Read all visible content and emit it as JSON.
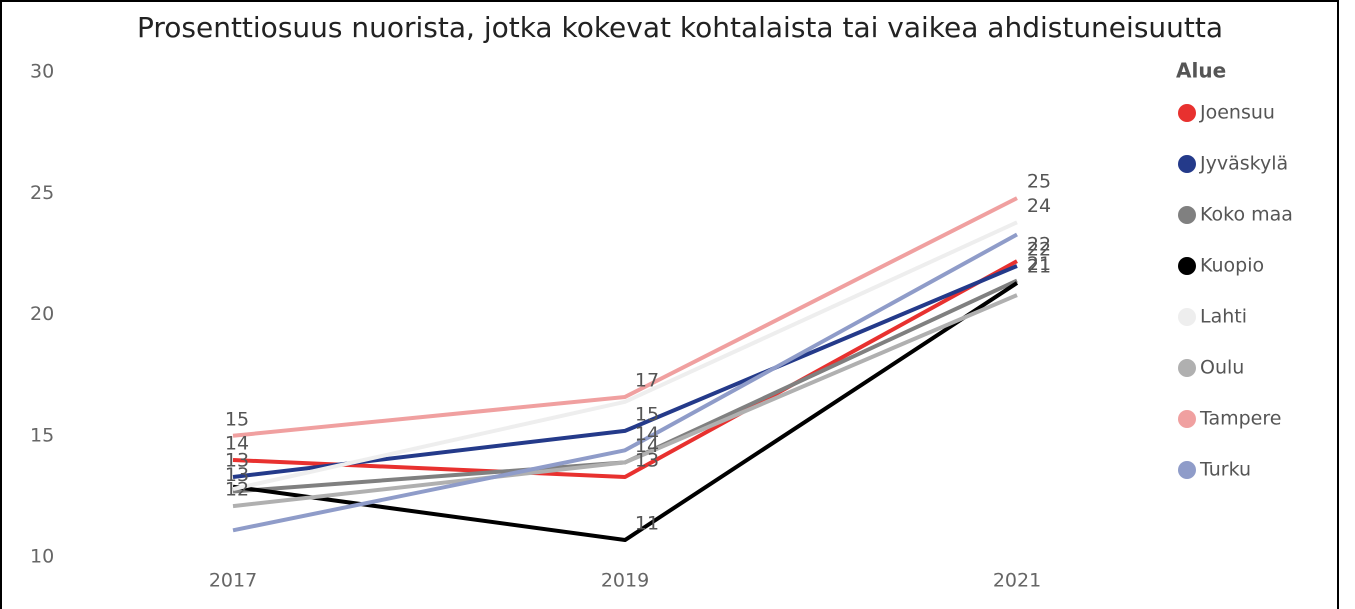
{
  "chart_data": {
    "type": "line",
    "title": "Prosenttiosuus nuorista, jotka kokevat kohtalaista tai vaikea ahdistuneisuutta",
    "legend_title": "Alue",
    "categories": [
      "2017",
      "2019",
      "2021"
    ],
    "ylim": [
      10,
      30
    ],
    "yticks": [
      10,
      15,
      20,
      25,
      30
    ],
    "series": [
      {
        "name": "Joensuu",
        "color": "#e8312f",
        "values": [
          14.0,
          13.3,
          22.2
        ],
        "value_labels": [
          "14",
          "13",
          "22"
        ]
      },
      {
        "name": "Jyväskylä",
        "color": "#243a8a",
        "values": [
          13.3,
          15.2,
          22.0
        ],
        "value_labels": [
          "13",
          "15",
          "22"
        ]
      },
      {
        "name": "Koko maa",
        "color": "#808080",
        "values": [
          12.7,
          13.9,
          21.4
        ],
        "value_labels": [
          "13",
          "14",
          "21"
        ]
      },
      {
        "name": "Kuopio",
        "color": "#000000",
        "values": [
          12.9,
          10.7,
          21.3
        ],
        "value_labels": [
          null,
          "11",
          "21"
        ]
      },
      {
        "name": "Lahti",
        "color": "#eeeeee",
        "values": [
          12.8,
          16.4,
          23.8
        ],
        "value_labels": [
          null,
          null,
          "24"
        ]
      },
      {
        "name": "Oulu",
        "color": "#b0b0b0",
        "values": [
          12.1,
          13.9,
          20.8
        ],
        "value_labels": [
          "12",
          null,
          null
        ]
      },
      {
        "name": "Tampere",
        "color": "#f0a0a0",
        "values": [
          15.0,
          16.6,
          24.8
        ],
        "value_labels": [
          "15",
          "17",
          "25"
        ]
      },
      {
        "name": "Turku",
        "color": "#8f9cc9",
        "values": [
          11.1,
          14.4,
          23.3
        ],
        "value_labels": [
          null,
          "14",
          null
        ]
      }
    ]
  }
}
